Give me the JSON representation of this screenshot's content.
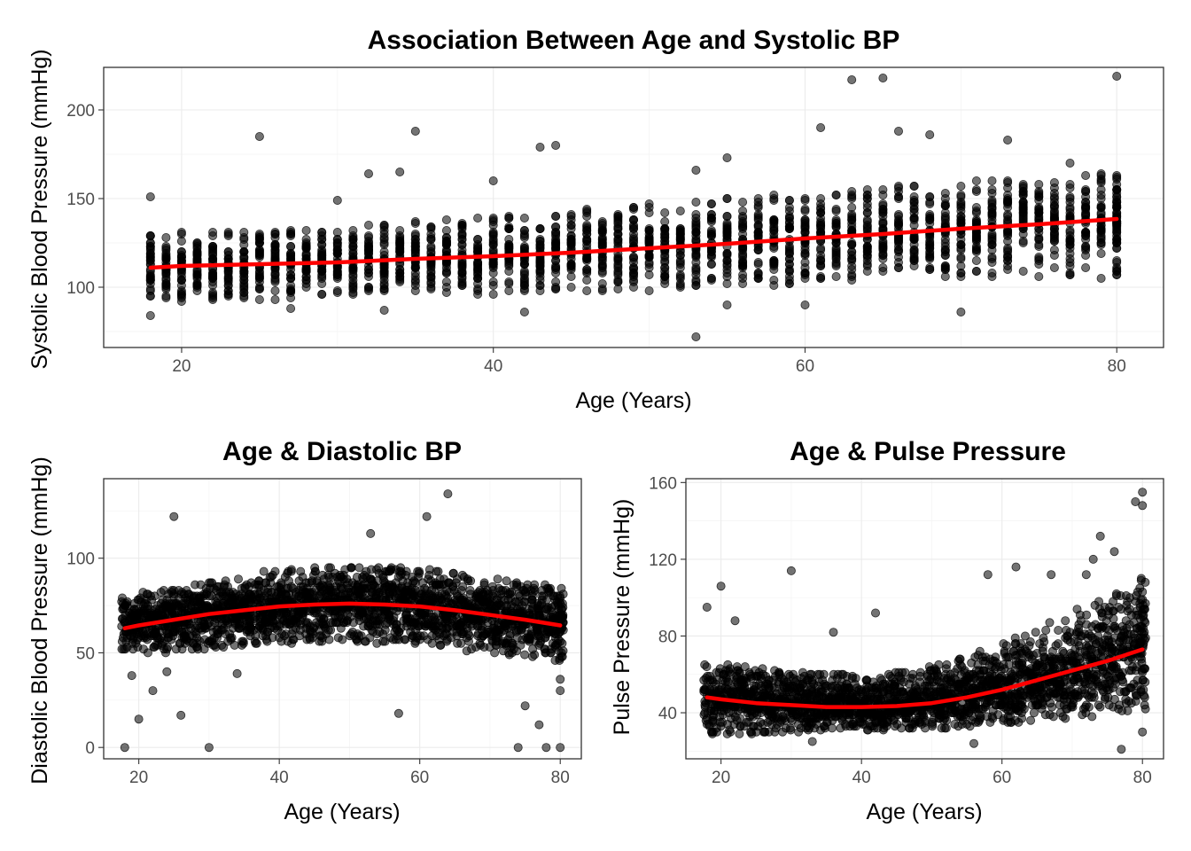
{
  "chart_data": [
    {
      "type": "scatter",
      "title": "Association Between Age and Systolic BP",
      "xlabel": "Age (Years)",
      "ylabel": "Systolic Blood Pressure (mmHg)",
      "xlim": [
        15,
        83
      ],
      "ylim": [
        66,
        224
      ],
      "xticks": [
        20,
        40,
        60,
        80
      ],
      "yticks": [
        100,
        150,
        200
      ],
      "grid": true,
      "legend": "none",
      "point_color": "#000000",
      "trend_color": "#ff0000",
      "points_summary": {
        "age_range": [
          18,
          80
        ],
        "n_approx": 5000
      },
      "trend_line": {
        "x": [
          18,
          20,
          25,
          30,
          35,
          40,
          45,
          50,
          55,
          60,
          65,
          70,
          75,
          80
        ],
        "y": [
          111,
          112,
          113,
          114,
          116,
          117.5,
          119.5,
          122,
          124.5,
          127.5,
          130,
          133,
          135.5,
          138.5
        ]
      },
      "band": {
        "x": [
          18,
          30,
          40,
          50,
          60,
          70,
          80
        ],
        "lo": [
          92,
          93,
          96,
          98,
          102,
          105,
          105
        ],
        "hi": [
          130,
          134,
          140,
          147,
          154,
          160,
          165
        ]
      },
      "outliers": [
        [
          18,
          151
        ],
        [
          25,
          185
        ],
        [
          30,
          149
        ],
        [
          32,
          164
        ],
        [
          34,
          165
        ],
        [
          35,
          188
        ],
        [
          40,
          160
        ],
        [
          43,
          179
        ],
        [
          44,
          180
        ],
        [
          53,
          166
        ],
        [
          55,
          173
        ],
        [
          61,
          190
        ],
        [
          63,
          217
        ],
        [
          65,
          218
        ],
        [
          66,
          188
        ],
        [
          68,
          186
        ],
        [
          70,
          86
        ],
        [
          73,
          183
        ],
        [
          77,
          170
        ],
        [
          79,
          155
        ],
        [
          80,
          219
        ],
        [
          53,
          72
        ],
        [
          55,
          90
        ],
        [
          60,
          90
        ],
        [
          42,
          86
        ],
        [
          33,
          87
        ],
        [
          27,
          88
        ],
        [
          18,
          84
        ]
      ]
    },
    {
      "type": "scatter",
      "title": "Age &  Diastolic BP",
      "xlabel": "Age (Years)",
      "ylabel": "Diastolic Blood Pressure (mmHg)",
      "xlim": [
        15,
        83
      ],
      "ylim": [
        -6,
        142
      ],
      "xticks": [
        20,
        40,
        60,
        80
      ],
      "yticks": [
        0,
        50,
        100
      ],
      "grid": true,
      "legend": "none",
      "point_color": "#000000",
      "trend_color": "#ff0000",
      "points_summary": {
        "age_range": [
          18,
          80
        ],
        "n_approx": 5000
      },
      "trend_line": {
        "x": [
          18,
          20,
          25,
          30,
          35,
          40,
          45,
          50,
          55,
          60,
          65,
          70,
          75,
          80
        ],
        "y": [
          63,
          64.5,
          67.5,
          70.5,
          72.5,
          74.5,
          75.5,
          76,
          75.5,
          74.5,
          72.5,
          70,
          67.5,
          64.5
        ]
      },
      "band": {
        "x": [
          18,
          30,
          40,
          50,
          60,
          70,
          80
        ],
        "lo": [
          48,
          52,
          55,
          56,
          54,
          50,
          45
        ],
        "hi": [
          80,
          88,
          94,
          96,
          95,
          90,
          85
        ]
      },
      "outliers": [
        [
          18,
          0
        ],
        [
          30,
          0
        ],
        [
          78,
          0
        ],
        [
          80,
          0
        ],
        [
          74,
          0
        ],
        [
          20,
          15
        ],
        [
          26,
          17
        ],
        [
          25,
          122
        ],
        [
          53,
          113
        ],
        [
          61,
          122
        ],
        [
          64,
          134
        ],
        [
          57,
          18
        ],
        [
          75,
          22
        ],
        [
          77,
          12
        ],
        [
          19,
          38
        ],
        [
          22,
          30
        ],
        [
          80,
          30
        ],
        [
          80,
          36
        ],
        [
          24,
          40
        ],
        [
          34,
          39
        ]
      ]
    },
    {
      "type": "scatter",
      "title": "Age & Pulse Pressure",
      "xlabel": "Age (Years)",
      "ylabel": "Pulse Pressure (mmHg)",
      "xlim": [
        15,
        83
      ],
      "ylim": [
        16,
        162
      ],
      "xticks": [
        20,
        40,
        60,
        80
      ],
      "yticks": [
        40,
        80,
        120,
        160
      ],
      "grid": true,
      "legend": "none",
      "point_color": "#000000",
      "trend_color": "#ff0000",
      "points_summary": {
        "age_range": [
          18,
          80
        ],
        "n_approx": 5000
      },
      "trend_line": {
        "x": [
          18,
          20,
          25,
          30,
          35,
          40,
          45,
          50,
          55,
          60,
          65,
          70,
          75,
          80
        ],
        "y": [
          48,
          47,
          45,
          44,
          43,
          43,
          43.5,
          45,
          48,
          52,
          57,
          62,
          67,
          73
        ]
      },
      "band": {
        "x": [
          18,
          30,
          40,
          50,
          60,
          70,
          80
        ],
        "lo": [
          28,
          30,
          31,
          32,
          34,
          38,
          42
        ],
        "hi": [
          66,
          62,
          60,
          64,
          76,
          92,
          110
        ]
      },
      "outliers": [
        [
          18,
          95
        ],
        [
          20,
          106
        ],
        [
          22,
          88
        ],
        [
          30,
          114
        ],
        [
          36,
          82
        ],
        [
          42,
          92
        ],
        [
          58,
          112
        ],
        [
          62,
          116
        ],
        [
          67,
          112
        ],
        [
          72,
          112
        ],
        [
          74,
          132
        ],
        [
          76,
          124
        ],
        [
          79,
          150
        ],
        [
          80,
          155
        ],
        [
          80,
          148
        ],
        [
          73,
          120
        ],
        [
          77,
          21
        ],
        [
          56,
          24
        ],
        [
          80,
          30
        ],
        [
          33,
          25
        ]
      ]
    }
  ]
}
